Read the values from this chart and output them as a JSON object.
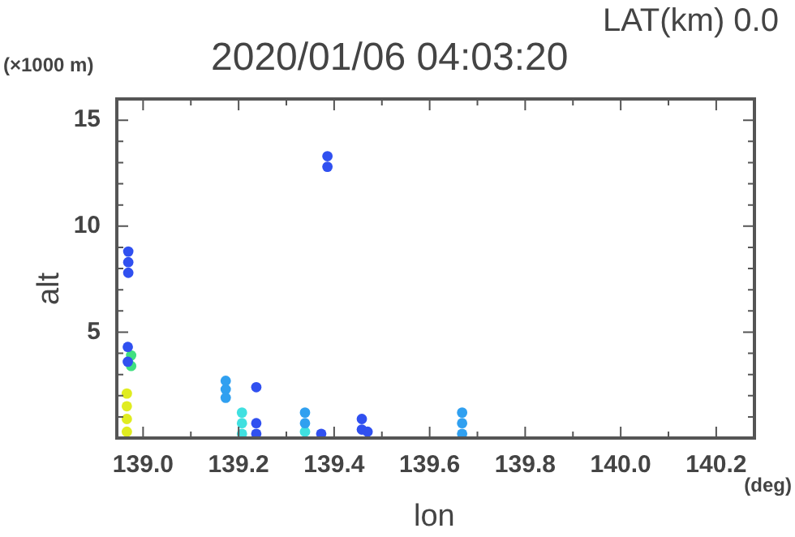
{
  "chart_data": {
    "type": "scatter",
    "title": "2020/01/06 04:03:20",
    "xlabel": "lon",
    "ylabel": "alt",
    "annotations": [
      "LAT(km) 0.0",
      "(×1000 m)",
      "(deg)"
    ],
    "xlim": [
      138.945,
      140.28
    ],
    "ylim": [
      0,
      16
    ],
    "xticks": [
      {
        "value": 139,
        "label": "139.0"
      },
      {
        "value": 139.1,
        "label": null
      },
      {
        "value": 139.2,
        "label": "139.2"
      },
      {
        "value": 139.3,
        "label": null
      },
      {
        "value": 139.4,
        "label": "139.4"
      },
      {
        "value": 139.5,
        "label": null
      },
      {
        "value": 139.6,
        "label": "139.6"
      },
      {
        "value": 139.7,
        "label": null
      },
      {
        "value": 139.8,
        "label": "139.8"
      },
      {
        "value": 139.9,
        "label": null
      },
      {
        "value": 140,
        "label": "140.0"
      },
      {
        "value": 140.1,
        "label": null
      },
      {
        "value": 140.2,
        "label": "140.2"
      }
    ],
    "yticks": [
      {
        "value": 1,
        "label": null
      },
      {
        "value": 2,
        "label": null
      },
      {
        "value": 3,
        "label": null
      },
      {
        "value": 4,
        "label": null
      },
      5,
      {
        "value": 6,
        "label": null
      },
      {
        "value": 7,
        "label": null
      },
      {
        "value": 8,
        "label": null
      },
      {
        "value": 9,
        "label": null
      },
      10,
      {
        "value": 11,
        "label": null
      },
      {
        "value": 12,
        "label": null
      },
      {
        "value": 13,
        "label": null
      },
      {
        "value": 14,
        "label": null
      },
      15
    ],
    "marker": "circle",
    "grid": false,
    "legend": false,
    "series": [
      {
        "color": "#e0ec20",
        "x": [
          138.966,
          138.966,
          138.966,
          138.966
        ],
        "values": [
          0.3,
          0.9,
          1.5,
          2.1
        ]
      },
      {
        "color": "#3050f0",
        "x": [
          138.968,
          138.968,
          138.969,
          138.969,
          138.969,
          139.386,
          139.386,
          139.237,
          139.237,
          139.237,
          139.373,
          139.458,
          139.458,
          139.47
        ],
        "values": [
          3.6,
          4.3,
          7.8,
          8.3,
          8.8,
          12.8,
          13.3,
          0.2,
          0.7,
          2.4,
          0.2,
          0.4,
          0.9,
          0.3
        ]
      },
      {
        "color": "#40e080",
        "x": [
          138.975,
          138.975
        ],
        "values": [
          3.4,
          3.9
        ]
      },
      {
        "color": "#30a0f0",
        "x": [
          139.173,
          139.173,
          139.173,
          139.339,
          139.339,
          139.668,
          139.668,
          139.668
        ],
        "values": [
          1.9,
          2.3,
          2.7,
          0.7,
          1.2,
          0.2,
          0.7,
          1.2
        ]
      },
      {
        "color": "#40e0e0",
        "x": [
          139.207,
          139.207,
          139.207,
          139.339
        ],
        "values": [
          0.2,
          0.7,
          1.2,
          0.3
        ]
      }
    ]
  }
}
